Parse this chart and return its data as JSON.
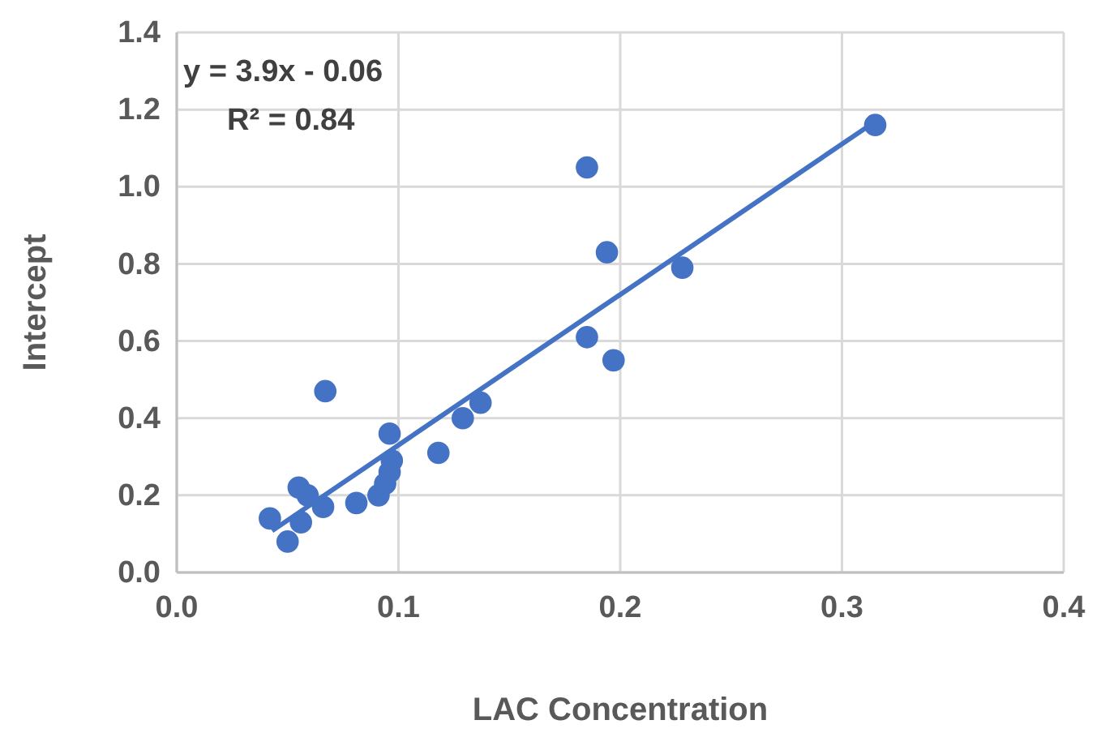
{
  "chart_data": {
    "type": "scatter",
    "xlabel": "LAC Concentration",
    "ylabel": "Intercept",
    "xlim": [
      0,
      0.4
    ],
    "xticks": [
      {
        "value": 0,
        "label": "0.0"
      },
      0.1,
      0.2,
      0.3,
      {
        "value": 0.4,
        "label": "0.4"
      }
    ],
    "ylim": [
      0,
      1.4
    ],
    "yticks": [
      {
        "value": 0,
        "label": "0.0"
      },
      0.2,
      0.4,
      0.6,
      0.8,
      {
        "value": 1,
        "label": "1.0"
      },
      1.2,
      1.4
    ],
    "grid": true,
    "annotations": [
      "y = 3.9x - 0.06",
      "R² = 0.84"
    ],
    "series": [
      {
        "marker": "circle",
        "color": "#4472c4",
        "x": [
          0.042,
          0.05,
          0.055,
          0.056,
          0.059,
          0.066,
          0.067,
          0.081,
          0.091,
          0.094,
          0.096,
          0.097,
          0.096,
          0.118,
          0.129,
          0.137,
          0.185,
          0.185,
          0.194,
          0.197,
          0.228,
          0.315
        ],
        "values": [
          0.14,
          0.08,
          0.22,
          0.13,
          0.2,
          0.17,
          0.47,
          0.18,
          0.2,
          0.23,
          0.26,
          0.29,
          0.36,
          0.31,
          0.4,
          0.44,
          0.61,
          1.05,
          0.83,
          0.55,
          0.79,
          1.16
        ]
      },
      {
        "type": "line",
        "color": "#4472c4",
        "x": [
          0.043,
          0.315
        ],
        "values": [
          0.108,
          1.169
        ]
      }
    ]
  }
}
